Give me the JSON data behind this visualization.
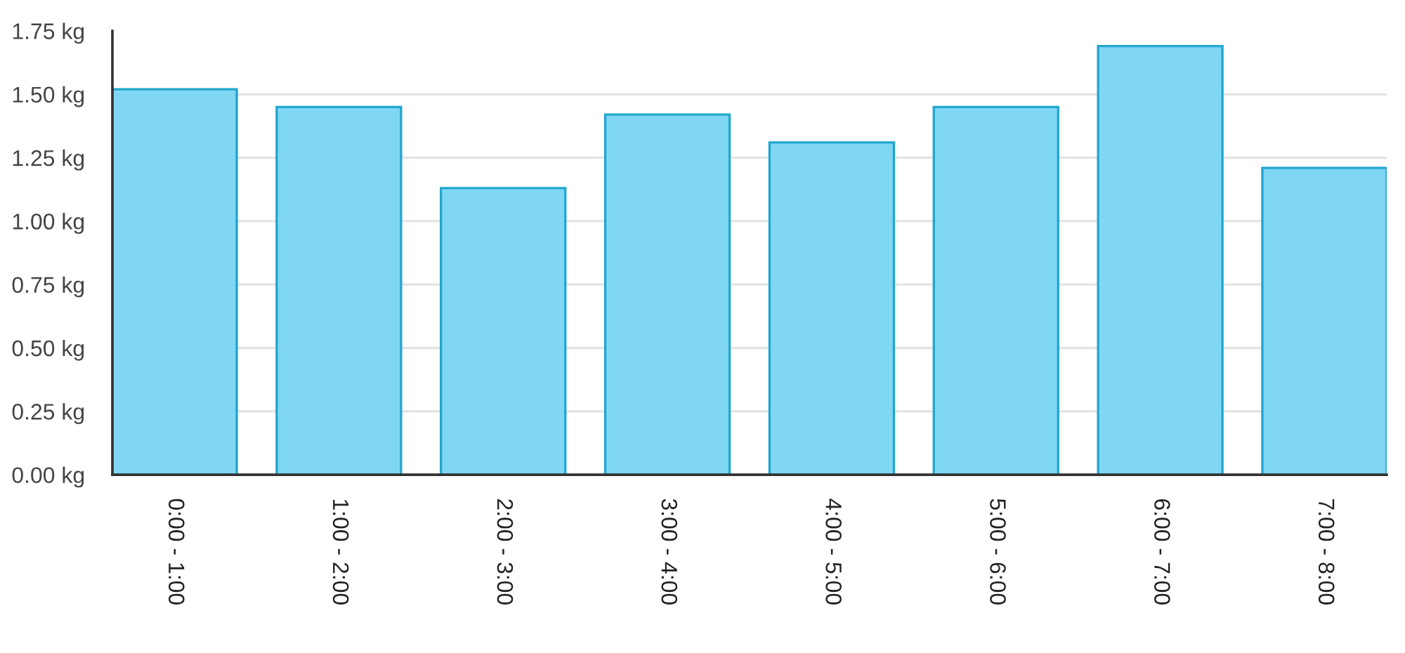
{
  "chart_data": {
    "type": "bar",
    "categories": [
      "0:00 - 1:00",
      "1:00 - 2:00",
      "2:00 - 3:00",
      "3:00 - 4:00",
      "4:00 - 5:00",
      "5:00 - 6:00",
      "6:00 - 7:00",
      "7:00 - 8:00"
    ],
    "values": [
      1.52,
      1.45,
      1.13,
      1.42,
      1.31,
      1.45,
      1.69,
      1.21
    ],
    "color": "#80d7f4",
    "ylim": [
      0,
      1.75
    ],
    "yticks": [
      {
        "value": 0,
        "label": "0.00 kg"
      },
      {
        "value": 0.25,
        "label": "0.25 kg"
      },
      {
        "value": 0.5,
        "label": "0.50 kg"
      },
      {
        "value": 0.75,
        "label": "0.75 kg"
      },
      {
        "value": 1.0,
        "label": "1.00 kg"
      },
      {
        "value": 1.25,
        "label": "1.25 kg"
      },
      {
        "value": 1.5,
        "label": "1.50 kg"
      },
      {
        "value": 1.75,
        "label": "1.75 kg"
      }
    ],
    "grid": "y"
  }
}
